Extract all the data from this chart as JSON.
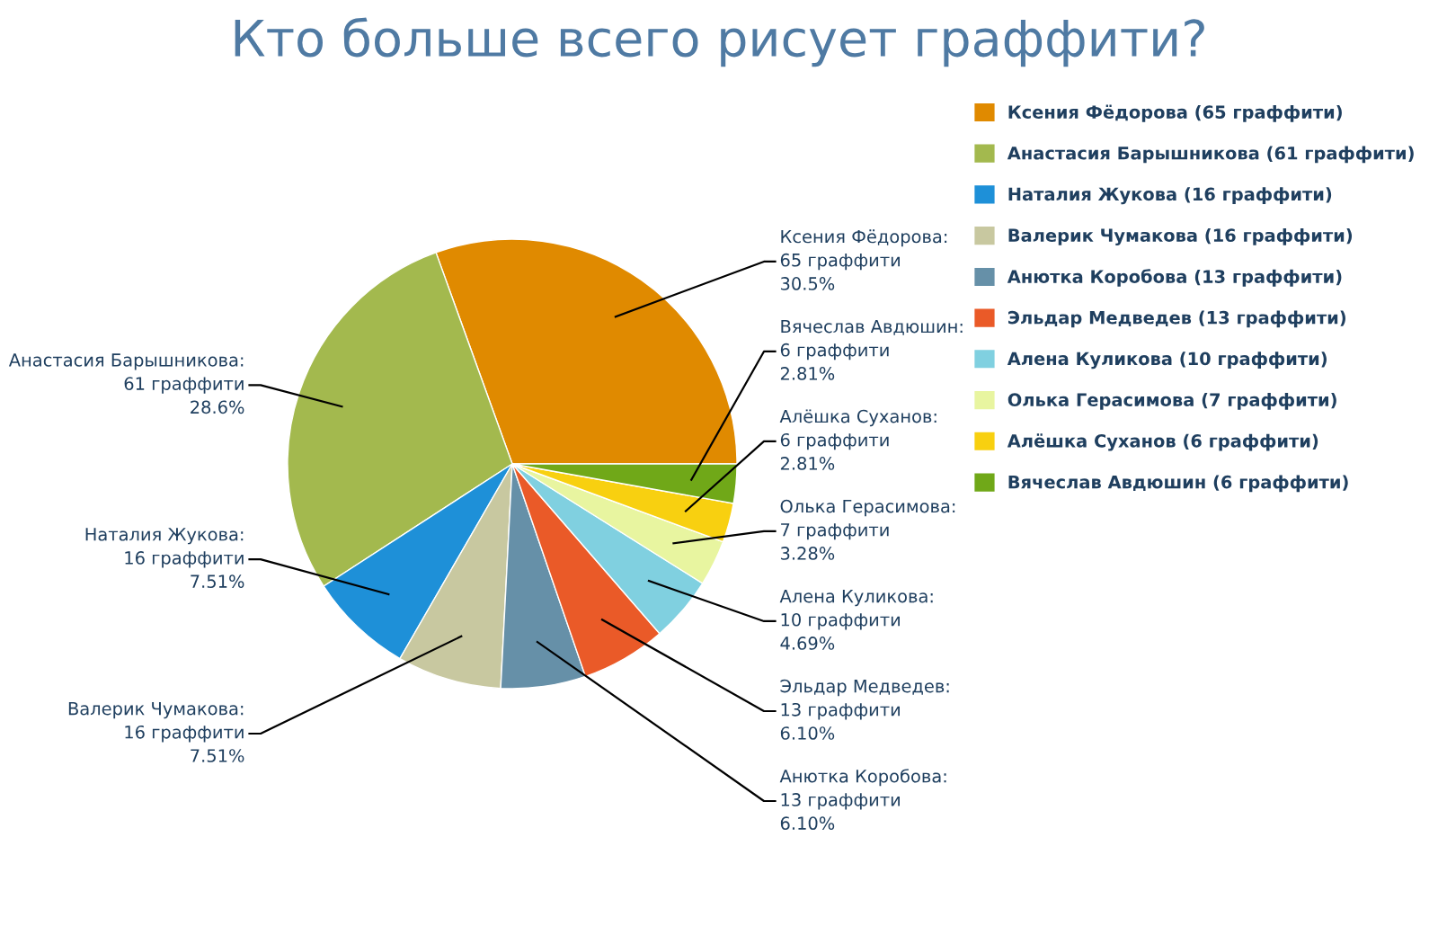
{
  "chart_data": {
    "type": "pie",
    "title": "Кто больше всего рисует граффити?",
    "categories": [
      "Ксения Фёдорова (65 граффити)",
      "Анастасия Барышникова (61 граффити)",
      "Наталия Жукова (16 граффити)",
      "Валерик Чумакова (16 граффити)",
      "Анютка Коробова (13 граффити)",
      "Эльдар Медведев (13 граффити)",
      "Алена Куликова (10 граффити)",
      "Олька Герасимова (7 граффити)",
      "Алёшка Суханов (6 граффити)",
      "Вячеслав Авдюшин (6 граффити)"
    ],
    "values": [
      65,
      61,
      16,
      16,
      13,
      13,
      10,
      7,
      6,
      6
    ],
    "value_labels": [
      "Ксения Фёдорова:\n65 граффити\n30.5%",
      "Анастасия Барышникова:\n61 граффити\n28.6%",
      "Наталия Жукова:\n16 граффити\n7.51%",
      "Валерик Чумакова:\n16 граффити\n7.51%",
      "Анютка Коробова:\n13 граффити\n6.10%",
      "Эльдар Медведев:\n13 граффити\n6.10%",
      "Алена Куликова:\n10 граффити\n4.69%",
      "Олька Герасимова:\n7 граффити\n3.28%",
      "Алёшка Суханов:\n6 граффити\n2.81%",
      "Вячеслав Авдюшин:\n6 граффити\n2.81%"
    ],
    "colors": [
      "#e08a00",
      "#a3b94e",
      "#1e90d8",
      "#c8c8a0",
      "#6690a8",
      "#ea5a28",
      "#80d0e0",
      "#e8f5a0",
      "#f8d010",
      "#70a818"
    ],
    "legend": "top right"
  }
}
